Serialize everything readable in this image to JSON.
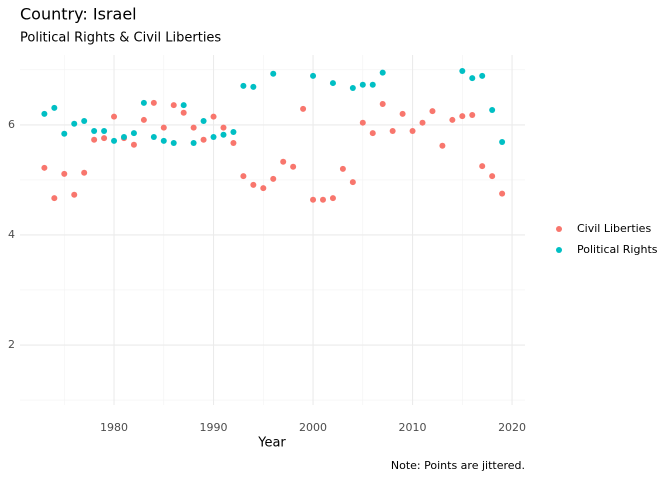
{
  "chart_data": {
    "type": "scatter",
    "title": "Country: Israel",
    "subtitle": "Political Rights & Civil Liberties",
    "x_label": "Year",
    "caption": "Note: Points are jittered.",
    "xlim": [
      1970.55,
      2021.3
    ],
    "ylim": [
      0.91,
      7.27
    ],
    "xticks": [
      1980,
      1990,
      2000,
      2010,
      2020
    ],
    "yticks": [
      2,
      4,
      6
    ],
    "x_minor_ticks": [
      1975,
      1985,
      1995,
      2005,
      2015
    ],
    "y_minor_ticks": [
      1,
      3,
      5,
      7
    ],
    "grid": true,
    "legend": "right",
    "series": [
      {
        "name": "Civil Liberties",
        "color": "#F8766D",
        "x": [
          1973,
          1974,
          1975,
          1976,
          1977,
          1978,
          1979,
          1980,
          1981,
          1982,
          1983,
          1984,
          1985,
          1986,
          1987,
          1988,
          1989,
          1990,
          1991,
          1992,
          1993,
          1994,
          1995,
          1996,
          1997,
          1998,
          1999,
          2000,
          2001,
          2002,
          2003,
          2004,
          2005,
          2006,
          2007,
          2008,
          2009,
          2010,
          2011,
          2012,
          2013,
          2014,
          2015,
          2016,
          2017,
          2018,
          2019
        ],
        "values": [
          5.22,
          4.67,
          5.11,
          4.73,
          5.13,
          5.73,
          5.76,
          6.15,
          5.76,
          5.64,
          6.09,
          6.4,
          5.95,
          6.36,
          6.22,
          5.95,
          5.73,
          6.15,
          5.95,
          5.67,
          5.07,
          4.91,
          4.85,
          5.02,
          5.33,
          5.24,
          6.29,
          4.64,
          4.64,
          4.67,
          5.2,
          4.96,
          6.04,
          5.85,
          6.38,
          5.89,
          6.2,
          5.89,
          6.04,
          6.25,
          5.62,
          6.09,
          6.16,
          6.18,
          5.25,
          5.07,
          4.75
        ]
      },
      {
        "name": "Political Rights",
        "color": "#00BFC4",
        "x": [
          1973,
          1974,
          1975,
          1976,
          1977,
          1978,
          1979,
          1980,
          1981,
          1982,
          1983,
          1984,
          1985,
          1986,
          1987,
          1988,
          1989,
          1990,
          1991,
          1992,
          1993,
          1994,
          1996,
          2000,
          2002,
          2004,
          2005,
          2006,
          2007,
          2015,
          2016,
          2017,
          2018,
          2019
        ],
        "values": [
          6.2,
          6.31,
          5.84,
          6.02,
          6.07,
          5.89,
          5.89,
          5.71,
          5.78,
          5.85,
          6.4,
          5.78,
          5.71,
          5.67,
          6.36,
          5.67,
          6.07,
          5.78,
          5.82,
          5.87,
          6.71,
          6.69,
          6.93,
          6.89,
          6.76,
          6.67,
          6.73,
          6.73,
          6.95,
          6.98,
          6.85,
          6.89,
          6.27,
          5.69
        ]
      }
    ]
  }
}
